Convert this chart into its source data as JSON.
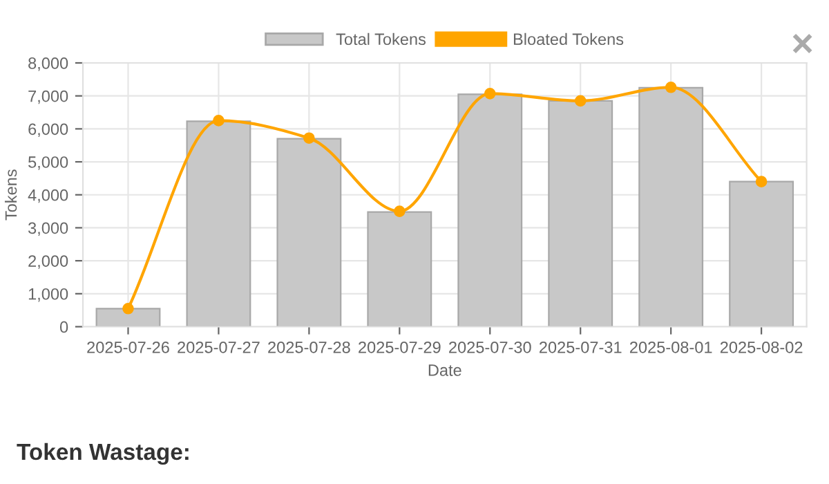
{
  "chart_data": {
    "type": "bar",
    "xlabel": "Date",
    "ylabel": "Tokens",
    "categories": [
      "2025-07-26",
      "2025-07-27",
      "2025-07-28",
      "2025-07-29",
      "2025-07-30",
      "2025-07-31",
      "2025-08-01",
      "2025-08-02"
    ],
    "series": [
      {
        "name": "Total Tokens",
        "color": "#c8c8c8",
        "values": [
          550,
          6230,
          5700,
          3480,
          7050,
          6850,
          7250,
          4400
        ]
      },
      {
        "name": "Bloated Tokens",
        "type": "line",
        "color": "#ffa500",
        "values": [
          550,
          6250,
          5720,
          3500,
          7070,
          6850,
          7260,
          4400
        ]
      }
    ],
    "ylim": [
      0,
      8000
    ],
    "yticks": [
      {
        "value": 0,
        "label": "0"
      },
      {
        "value": 1000,
        "label": "1,000"
      },
      {
        "value": 2000,
        "label": "2,000"
      },
      {
        "value": 3000,
        "label": "3,000"
      },
      {
        "value": 4000,
        "label": "4,000"
      },
      {
        "value": 5000,
        "label": "5,000"
      },
      {
        "value": 6000,
        "label": "6,000"
      },
      {
        "value": 7000,
        "label": "7,000"
      },
      {
        "value": 8000,
        "label": "8,000"
      }
    ],
    "grid": true,
    "legend": "top",
    "marker": "circle",
    "line_style": "solid",
    "annotations": [
      "Token Wastage:"
    ]
  }
}
